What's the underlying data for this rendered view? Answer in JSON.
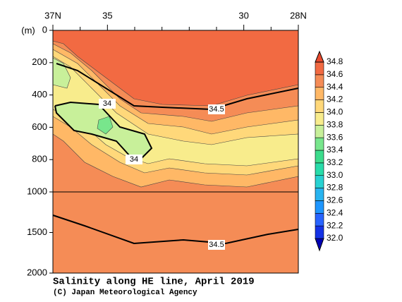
{
  "chart_data": {
    "type": "contour",
    "title": "Salinity along HE line, April 2019",
    "credit": "(C) Japan Meteorological Agency",
    "y_label": "(m)",
    "xlim": [
      37,
      28
    ],
    "xticks": [
      {
        "value": 37,
        "label": "37N"
      },
      35,
      30,
      {
        "value": 28,
        "label": "28N"
      }
    ],
    "xminor": [
      36,
      34,
      33,
      32,
      31,
      29
    ],
    "ylim": [
      0,
      2000
    ],
    "yticks": [
      0,
      200,
      400,
      600,
      800,
      1000,
      1500,
      2000
    ],
    "y_break": 1000,
    "levels": [
      {
        "value": 32,
        "label": "32.0"
      },
      32.2,
      32.4,
      32.6,
      32.8,
      {
        "value": 33,
        "label": "33.0"
      },
      33.2,
      33.4,
      33.6,
      33.8,
      {
        "value": 34,
        "label": "34.0"
      },
      34.2,
      34.4,
      34.6,
      34.8
    ],
    "colors": [
      "#0000b4",
      "#1432e6",
      "#2864ff",
      "#1e96ff",
      "#28b4f0",
      "#28d2d2",
      "#28dcaa",
      "#3cdc8c",
      "#78e68c",
      "#c8f09a",
      "#f8ec8c",
      "#ffd87a",
      "#ffb866",
      "#f58c56",
      "#f26a42",
      "#e84a2e"
    ],
    "contour_labels": [
      34,
      34,
      34.5,
      34.5
    ]
  }
}
